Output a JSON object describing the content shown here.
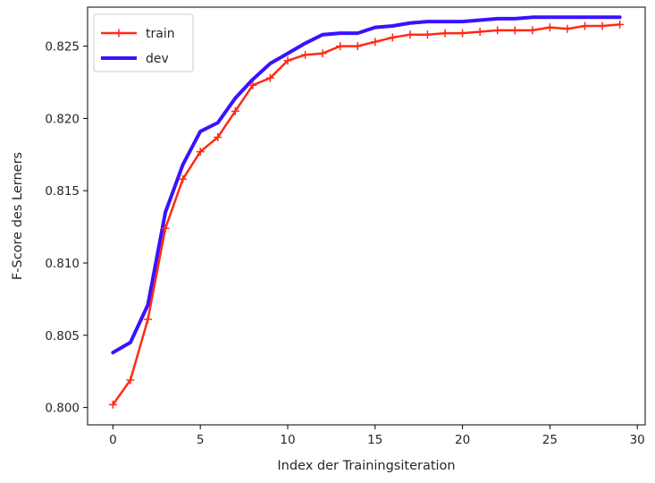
{
  "chart_data": {
    "type": "line",
    "title": "",
    "xlabel": "Index der Trainingsiteration",
    "ylabel": "F-Score des Lerners",
    "xlim": [
      -1.45,
      30.45
    ],
    "ylim": [
      0.7988,
      0.8277
    ],
    "xticks": [
      0,
      5,
      10,
      15,
      20,
      25,
      30
    ],
    "yticks": [
      0.8,
      0.805,
      0.81,
      0.815,
      0.82,
      0.825
    ],
    "ytick_labels": [
      "0.800",
      "0.805",
      "0.810",
      "0.815",
      "0.820",
      "0.825"
    ],
    "grid": false,
    "legend_position": "top-left",
    "x": [
      0,
      1,
      2,
      3,
      4,
      5,
      6,
      7,
      8,
      9,
      10,
      11,
      12,
      13,
      14,
      15,
      16,
      17,
      18,
      19,
      20,
      21,
      22,
      23,
      24,
      25,
      26,
      27,
      28,
      29
    ],
    "series": [
      {
        "name": "train",
        "color": "#ff2a14",
        "marker": "plus",
        "values": [
          0.8002,
          0.8019,
          0.8061,
          0.8124,
          0.8158,
          0.8177,
          0.8187,
          0.8205,
          0.8223,
          0.8228,
          0.824,
          0.8244,
          0.8245,
          0.825,
          0.825,
          0.8253,
          0.8256,
          0.8258,
          0.8258,
          0.8259,
          0.8259,
          0.826,
          0.8261,
          0.8261,
          0.8261,
          0.8263,
          0.8262,
          0.8264,
          0.8264,
          0.8265
        ]
      },
      {
        "name": "dev",
        "color": "#3a12ff",
        "marker": "none",
        "values": [
          0.8038,
          0.8045,
          0.8071,
          0.8135,
          0.8168,
          0.8191,
          0.8197,
          0.8214,
          0.8227,
          0.8238,
          0.8245,
          0.8252,
          0.8258,
          0.8259,
          0.8259,
          0.8263,
          0.8264,
          0.8266,
          0.8267,
          0.8267,
          0.8267,
          0.8268,
          0.8269,
          0.8269,
          0.827,
          0.827,
          0.827,
          0.827,
          0.827,
          0.827
        ]
      }
    ]
  }
}
